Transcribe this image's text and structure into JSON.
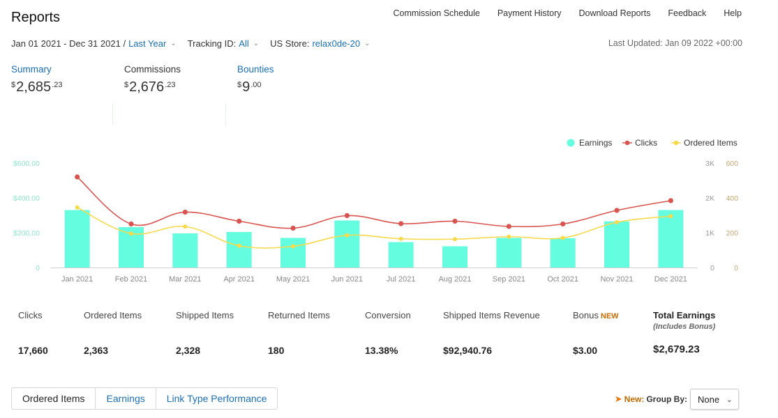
{
  "page": {
    "title": "Reports",
    "nav": [
      "Commission Schedule",
      "Payment History",
      "Download Reports",
      "Feedback",
      "Help"
    ],
    "last_updated": "Last Updated: Jan 09 2022 +00:00"
  },
  "filters": {
    "date_range": "Jan 01 2021 - Dec 31 2021 /",
    "date_preset": "Last Year",
    "tracking_label": "Tracking ID:",
    "tracking_value": "All",
    "store_label": "US Store:",
    "store_value": "relax0de-20"
  },
  "summary": {
    "summary": {
      "label": "Summary",
      "currency": "$",
      "whole": "2,685",
      "cents": ".23"
    },
    "commissions": {
      "label": "Commissions",
      "currency": "$",
      "whole": "2,676",
      "cents": ".23"
    },
    "bounties": {
      "label": "Bounties",
      "currency": "$",
      "whole": "9",
      "cents": ".00"
    }
  },
  "colors": {
    "earnings": "#64fde0",
    "clicks": "#d9534f",
    "ordered_items": "#f7d94c",
    "link": "#1a6fb5",
    "axis_left": "#8ee8c8",
    "axis_right2": "#c8a774"
  },
  "chart_data": {
    "type": "bar",
    "categories": [
      "Jan 2021",
      "Feb 2021",
      "Mar 2021",
      "Apr 2021",
      "May 2021",
      "Jun 2021",
      "Jul 2021",
      "Aug 2021",
      "Sep 2021",
      "Oct 2021",
      "Nov 2021",
      "Dec 2021"
    ],
    "legend": [
      "Earnings",
      "Clicks",
      "Ordered Items"
    ],
    "legend_position": "top-right",
    "series": [
      {
        "name": "Earnings",
        "type": "bar",
        "axis": "left",
        "values": [
          330,
          232,
          196,
          204,
          170,
          270,
          146,
          122,
          170,
          168,
          265,
          330
        ]
      },
      {
        "name": "Clicks",
        "type": "line",
        "axis": "right_clicks",
        "values": [
          2600,
          1250,
          1590,
          1330,
          1130,
          1490,
          1260,
          1330,
          1180,
          1250,
          1640,
          1920
        ]
      },
      {
        "name": "Ordered Items",
        "type": "line",
        "axis": "right_items",
        "values": [
          345,
          195,
          235,
          125,
          122,
          185,
          165,
          163,
          177,
          170,
          260,
          295
        ]
      }
    ],
    "y_left": {
      "min": 0,
      "max": 600,
      "ticks": [
        "0",
        "$200.00",
        "$400.00",
        "$600.00"
      ]
    },
    "y_right_clicks": {
      "min": 0,
      "max": 3000,
      "ticks": [
        "0",
        "1K",
        "2K",
        "3K"
      ]
    },
    "y_right_items": {
      "min": 0,
      "max": 600,
      "ticks": [
        "0",
        "200",
        "400",
        "600"
      ]
    },
    "grid": false
  },
  "metrics": {
    "clicks": {
      "label": "Clicks",
      "value": "17,660"
    },
    "ordered": {
      "label": "Ordered Items",
      "value": "2,363"
    },
    "shipped": {
      "label": "Shipped Items",
      "value": "2,328"
    },
    "returned": {
      "label": "Returned Items",
      "value": "180"
    },
    "conversion": {
      "label": "Conversion",
      "value": "13.38%"
    },
    "revenue": {
      "label": "Shipped Items Revenue",
      "value": "$92,940.76"
    },
    "bonus": {
      "label": "Bonus",
      "badge": "NEW",
      "value": "$3.00"
    },
    "total": {
      "label": "Total Earnings",
      "sub": "(Includes Bonus)",
      "value": "$2,679.23"
    }
  },
  "tabs": [
    "Ordered Items",
    "Earnings",
    "Link Type Performance"
  ],
  "group_by": {
    "new": "New:",
    "label": "Group By:",
    "value": "None"
  }
}
